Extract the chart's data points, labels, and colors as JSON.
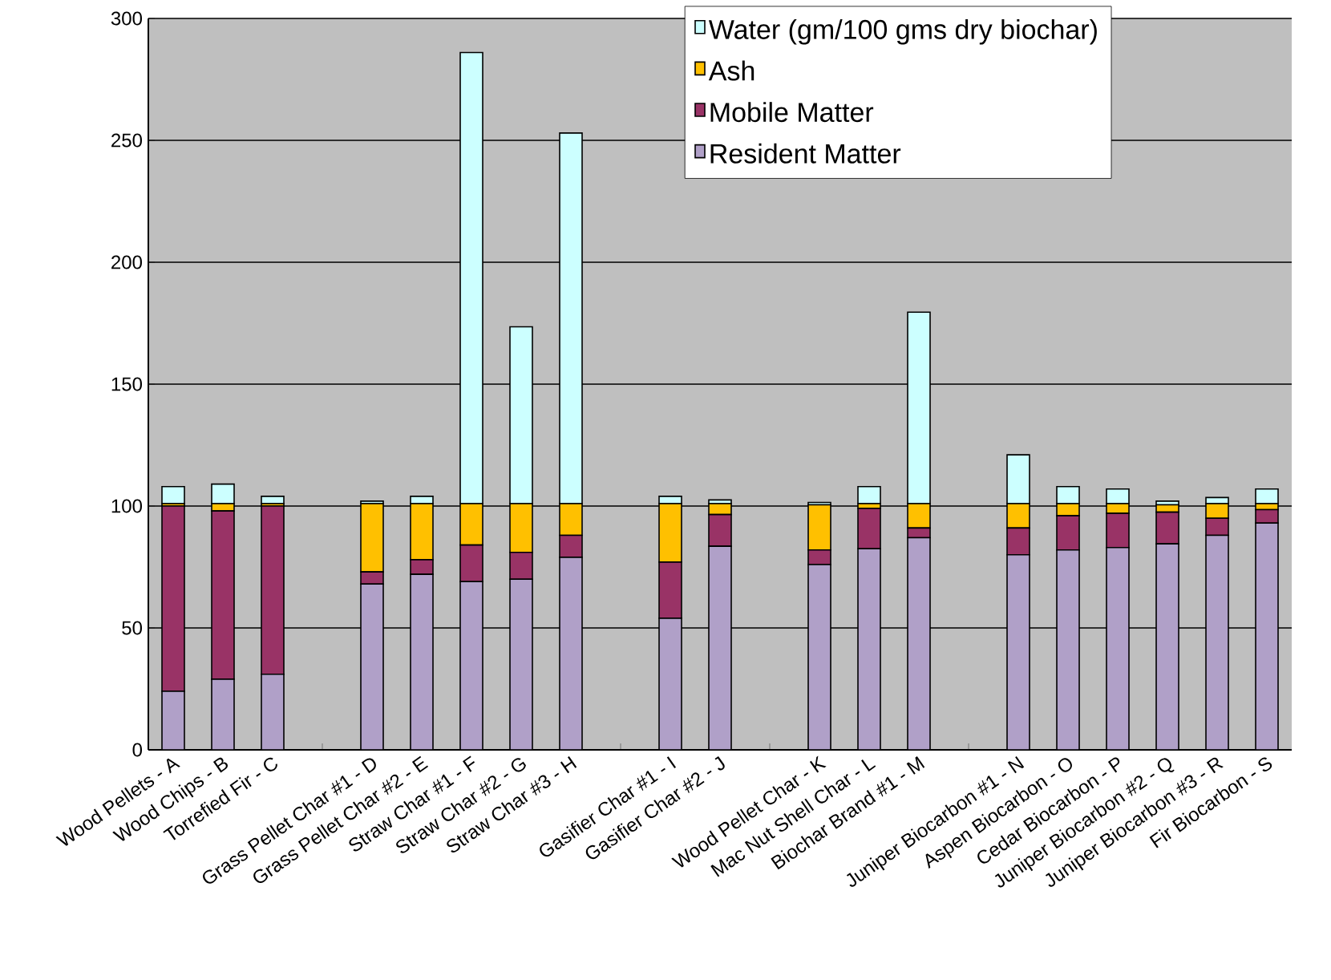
{
  "chart_data": {
    "type": "bar",
    "stacked": true,
    "categories": [
      "Wood Pellets - A",
      "Wood Chips - B",
      "Torrefied Fir - C",
      null,
      "Grass Pellet Char #1 - D",
      "Grass Pellet Char #2 - E",
      "Straw Char #1 - F",
      "Straw Char #2 - G",
      "Straw Char #3 - H",
      null,
      "Gasifier Char #1 - I",
      "Gasifier Char #2 - J",
      null,
      "Wood Pellet Char - K",
      "Mac Nut Shell Char - L",
      "Biochar Brand #1 - M",
      null,
      "Juniper Biocarbon #1 - N",
      "Aspen Biocarbon - O",
      "Cedar Biocarbon - P",
      "Juniper Biocarbon #2 - Q",
      "Juniper Biocarbon #3 - R",
      "Fir Biocarbon - S"
    ],
    "series": [
      {
        "name": "Resident Matter",
        "color": "#b0a0c8",
        "values": [
          24,
          29,
          31,
          null,
          68,
          72,
          69,
          70,
          79,
          null,
          54,
          83.5,
          null,
          76,
          82.5,
          87,
          null,
          80,
          82,
          83,
          84.5,
          88,
          93
        ]
      },
      {
        "name": "Mobile Matter",
        "color": "#993366",
        "values": [
          76,
          69,
          69,
          null,
          5,
          6,
          15,
          11,
          9,
          null,
          23,
          13,
          null,
          6,
          16.5,
          4,
          null,
          11,
          14,
          14,
          13,
          7,
          5.5
        ]
      },
      {
        "name": "Ash",
        "color": "#ffc000",
        "values": [
          1,
          3,
          1,
          null,
          28,
          23,
          17,
          20,
          13,
          null,
          24,
          4.5,
          null,
          18.5,
          2,
          10,
          null,
          10,
          5,
          4,
          3,
          6,
          2.5
        ]
      },
      {
        "name": "Water (gm/100 gms dry biochar)",
        "color": "#ccffff",
        "values": [
          7,
          8,
          3,
          null,
          1,
          3,
          185,
          72.5,
          152,
          null,
          3,
          1.5,
          null,
          1,
          7,
          78.5,
          null,
          20,
          7,
          6,
          1.5,
          2.5,
          6
        ]
      }
    ],
    "ylim": [
      0,
      300
    ],
    "yticks": [
      0,
      50,
      100,
      150,
      200,
      250,
      300
    ],
    "grid": "y",
    "legend": "top right"
  }
}
